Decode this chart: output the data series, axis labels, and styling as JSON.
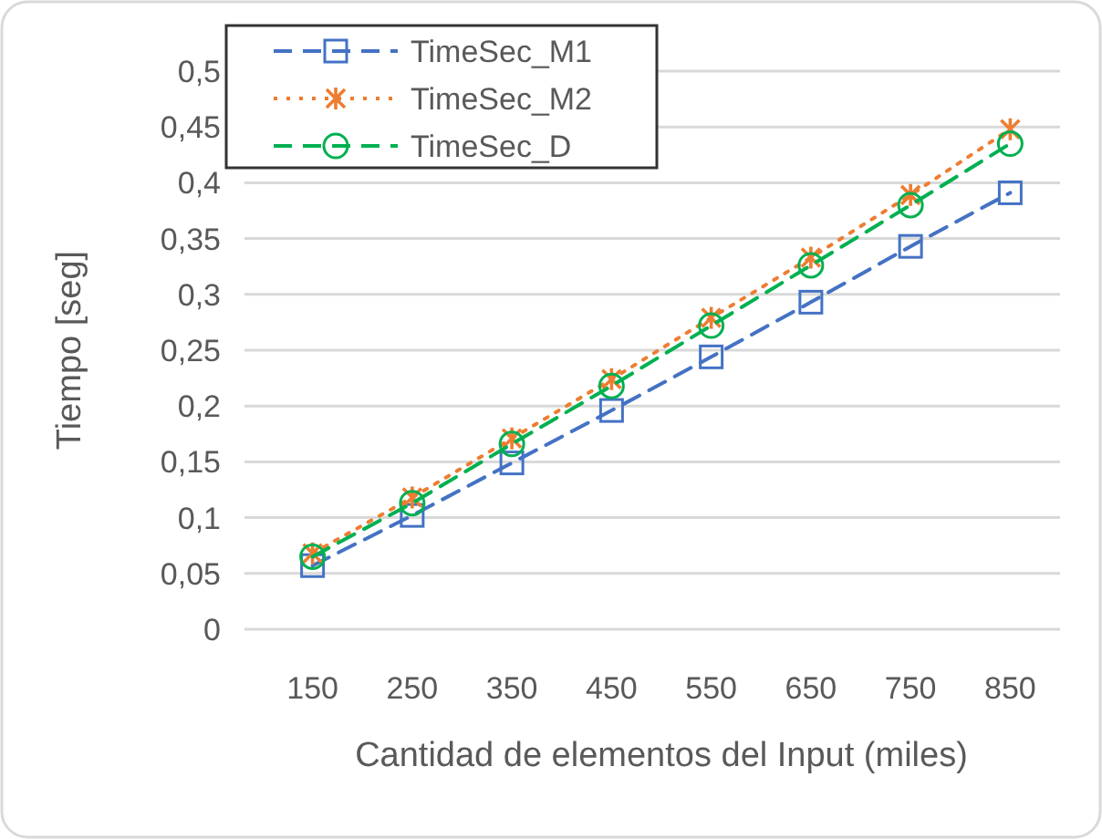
{
  "chart_data": {
    "type": "line",
    "xlabel": "Cantidad de elementos del Input (miles)",
    "ylabel": "Tiempo [seg]",
    "categories": [
      "150",
      "250",
      "350",
      "450",
      "550",
      "650",
      "750",
      "850"
    ],
    "series": [
      {
        "name": "TimeSec_M1",
        "color": "#4472c4",
        "marker": "square",
        "line_style": "dashed",
        "values": [
          0.057,
          0.102,
          0.149,
          0.196,
          0.244,
          0.293,
          0.343,
          0.391
        ]
      },
      {
        "name": "TimeSec_M2",
        "color": "#ed7d31",
        "marker": "cross",
        "line_style": "dotted",
        "values": [
          0.068,
          0.118,
          0.171,
          0.224,
          0.279,
          0.333,
          0.389,
          0.448
        ]
      },
      {
        "name": "TimeSec_D",
        "color": "#00b050",
        "marker": "circle",
        "line_style": "dashed",
        "values": [
          0.065,
          0.113,
          0.166,
          0.218,
          0.272,
          0.326,
          0.38,
          0.435
        ]
      }
    ],
    "ylim": [
      0,
      0.5
    ],
    "yticks": [
      {
        "value": 0,
        "label": "0"
      },
      {
        "value": 0.05,
        "label": "0,05"
      },
      {
        "value": 0.1,
        "label": "0,1"
      },
      {
        "value": 0.15,
        "label": "0,15"
      },
      {
        "value": 0.2,
        "label": "0,2"
      },
      {
        "value": 0.25,
        "label": "0,25"
      },
      {
        "value": 0.3,
        "label": "0,3"
      },
      {
        "value": 0.35,
        "label": "0,35"
      },
      {
        "value": 0.4,
        "label": "0,4"
      },
      {
        "value": 0.45,
        "label": "0,45"
      },
      {
        "value": 0.5,
        "label": "0,5"
      }
    ],
    "grid": "y",
    "legend": "top left"
  }
}
